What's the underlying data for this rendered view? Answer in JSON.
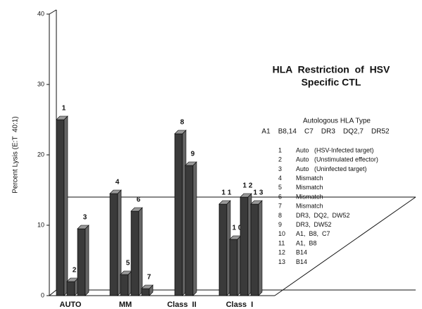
{
  "chart_data": {
    "type": "bar3d",
    "title_lines": [
      "HLA  Restriction  of  HSV",
      "Specific CTL"
    ],
    "ylabel": "Percent Lysis (E:T  40:1)",
    "ylim": [
      0,
      40
    ],
    "yticks": [
      0,
      10,
      20,
      30,
      40
    ],
    "color": "#3a3a3a",
    "groups": [
      {
        "name": "AUTO",
        "bars": [
          {
            "label": "1",
            "value": 25
          },
          {
            "label": "2",
            "value": 2
          },
          {
            "label": "3",
            "value": 9.5
          }
        ]
      },
      {
        "name": "MM",
        "bars": [
          {
            "label": "4",
            "value": 14.5
          },
          {
            "label": "5",
            "value": 3
          },
          {
            "label": "6",
            "value": 12
          },
          {
            "label": "7",
            "value": 1
          }
        ]
      },
      {
        "name": "Class  II",
        "bars": [
          {
            "label": "8",
            "value": 23
          },
          {
            "label": "9",
            "value": 18.5
          }
        ]
      },
      {
        "name": "Class  I",
        "bars": [
          {
            "label": "1 1",
            "value": 13
          },
          {
            "label": "1 0",
            "value": 8
          },
          {
            "label": "1 2",
            "value": 14
          },
          {
            "label": "1 3",
            "value": 13
          }
        ]
      }
    ],
    "legend_heading": "Autologous HLA Type",
    "legend_hla": "A1    B8,14    C7    DR3    DQ2,7    DR52",
    "key": [
      {
        "n": "1",
        "text": "Auto   (HSV-Infected target)"
      },
      {
        "n": "2",
        "text": "Auto   (Unstimulated effector)"
      },
      {
        "n": "3",
        "text": "Auto   (Uninfected target)"
      },
      {
        "n": "4",
        "text": "Mismatch"
      },
      {
        "n": "5",
        "text": "Mismatch"
      },
      {
        "n": "6",
        "text": "Mismatch"
      },
      {
        "n": "7",
        "text": "Mismatch"
      },
      {
        "n": "8",
        "text": "DR3,  DQ2,  DW52"
      },
      {
        "n": "9",
        "text": "DR3,  DW52"
      },
      {
        "n": "10",
        "text": "A1,  B8,  C7"
      },
      {
        "n": "11",
        "text": "A1,  B8"
      },
      {
        "n": "12",
        "text": "B14"
      },
      {
        "n": "13",
        "text": "B14"
      }
    ]
  }
}
